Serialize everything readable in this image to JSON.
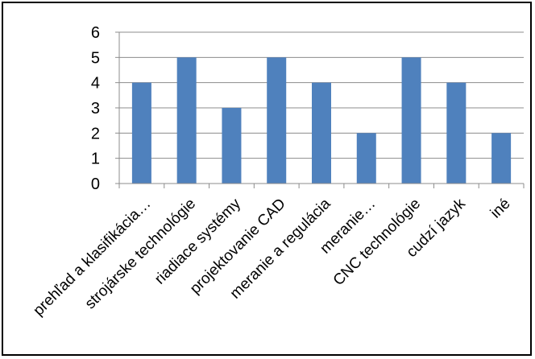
{
  "chart_data": {
    "type": "bar",
    "categories": [
      "prehľad a klasifikácia…",
      "strojárske technológie",
      "riadiace systémy",
      "projektovanie CAD",
      "meranie a regulácia",
      "meranie…",
      "CNC technológie",
      "cudzí jazyk",
      "iné"
    ],
    "values": [
      4,
      5,
      3,
      5,
      4,
      2,
      5,
      4,
      2
    ],
    "ylim": [
      0,
      6
    ],
    "yticks": [
      "0",
      "1",
      "2",
      "3",
      "4",
      "5",
      "6"
    ],
    "grid": true,
    "legend": "none",
    "bar_color": "#4F81BD",
    "grid_color": "#8C8C8C"
  }
}
